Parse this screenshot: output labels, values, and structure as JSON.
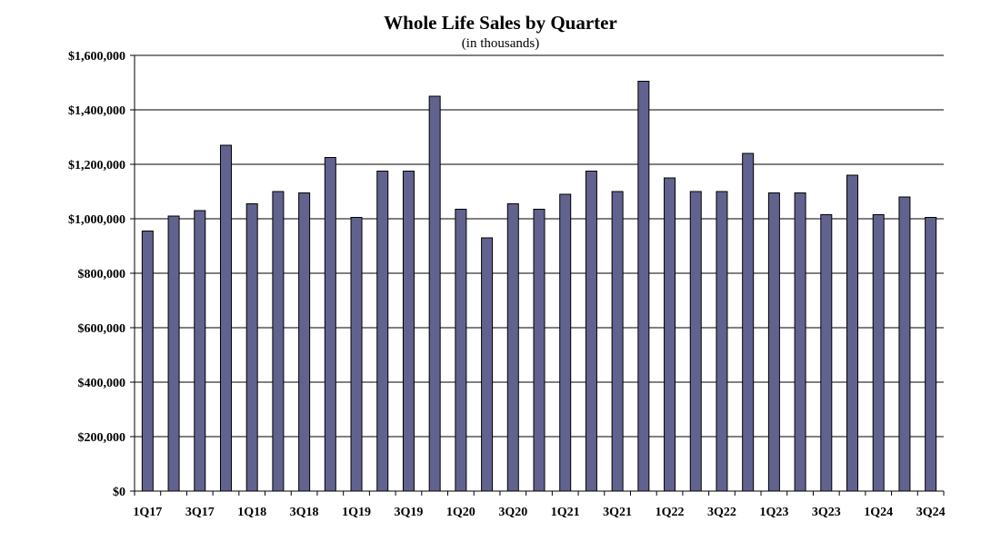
{
  "chart_data": {
    "type": "bar",
    "title": "Whole Life Sales by Quarter",
    "subtitle": "(in thousands)",
    "xlabel": "",
    "ylabel": "",
    "ylim": [
      0,
      1600000
    ],
    "y_ticks": [
      {
        "value": 0,
        "label": "$0"
      },
      {
        "value": 200000,
        "label": "$200,000"
      },
      {
        "value": 400000,
        "label": "$400,000"
      },
      {
        "value": 600000,
        "label": "$600,000"
      },
      {
        "value": 800000,
        "label": "$800,000"
      },
      {
        "value": 1000000,
        "label": "$1,000,000"
      },
      {
        "value": 1200000,
        "label": "$1,200,000"
      },
      {
        "value": 1400000,
        "label": "$1,400,000"
      },
      {
        "value": 1600000,
        "label": "$1,600,000"
      }
    ],
    "grid": true,
    "bar_color": "#62628f",
    "categories": [
      "1Q17",
      "2Q17",
      "3Q17",
      "4Q17",
      "1Q18",
      "2Q18",
      "3Q18",
      "4Q18",
      "1Q19",
      "2Q19",
      "3Q19",
      "4Q19",
      "1Q20",
      "2Q20",
      "3Q20",
      "4Q20",
      "1Q21",
      "2Q21",
      "3Q21",
      "4Q21",
      "1Q22",
      "2Q22",
      "3Q22",
      "4Q22",
      "1Q23",
      "2Q23",
      "3Q23",
      "4Q23",
      "1Q24",
      "2Q24",
      "3Q24"
    ],
    "tick_labels": [
      "1Q17",
      "",
      "3Q17",
      "",
      "1Q18",
      "",
      "3Q18",
      "",
      "1Q19",
      "",
      "3Q19",
      "",
      "1Q20",
      "",
      "3Q20",
      "",
      "1Q21",
      "",
      "3Q21",
      "",
      "1Q22",
      "",
      "3Q22",
      "",
      "1Q23",
      "",
      "3Q23",
      "",
      "1Q24",
      "",
      "3Q24"
    ],
    "values": [
      955000,
      1010000,
      1030000,
      1270000,
      1055000,
      1100000,
      1095000,
      1225000,
      1005000,
      1175000,
      1175000,
      1450000,
      1035000,
      930000,
      1055000,
      1035000,
      1090000,
      1175000,
      1100000,
      1505000,
      1150000,
      1100000,
      1100000,
      1240000,
      1095000,
      1095000,
      1015000,
      1160000,
      1015000,
      1080000,
      1005000
    ]
  }
}
